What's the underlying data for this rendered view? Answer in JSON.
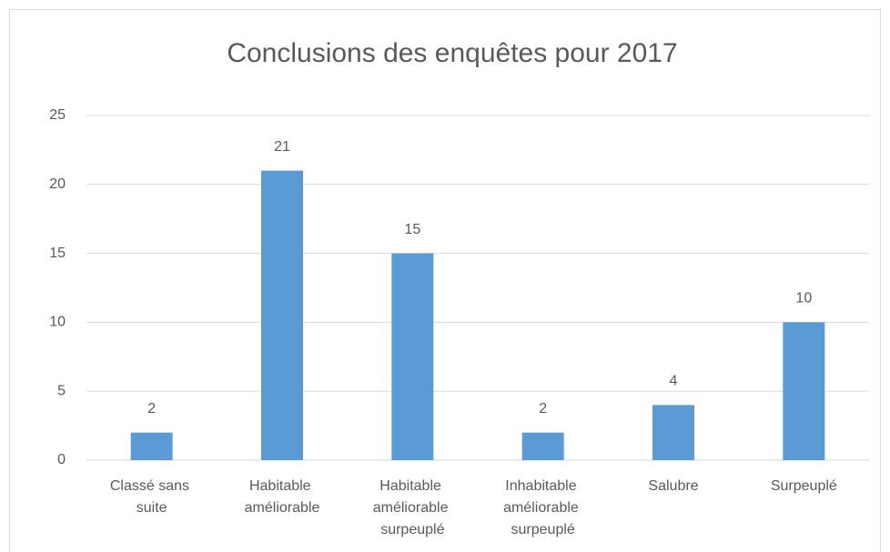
{
  "chart_data": {
    "type": "bar",
    "title": "Conclusions des enquêtes pour 2017",
    "categories": [
      "Classé sans suite",
      "Habitable améliorable",
      "Habitable améliorable surpeuplé",
      "Inhabitable améliorable surpeuplé",
      "Salubre",
      "Surpeuplé"
    ],
    "values": [
      2,
      21,
      15,
      2,
      4,
      10
    ],
    "color": "#5b9bd5",
    "ylim": [
      0,
      25
    ],
    "yticks": [
      0,
      5,
      10,
      15,
      20,
      25
    ],
    "grid": true
  }
}
